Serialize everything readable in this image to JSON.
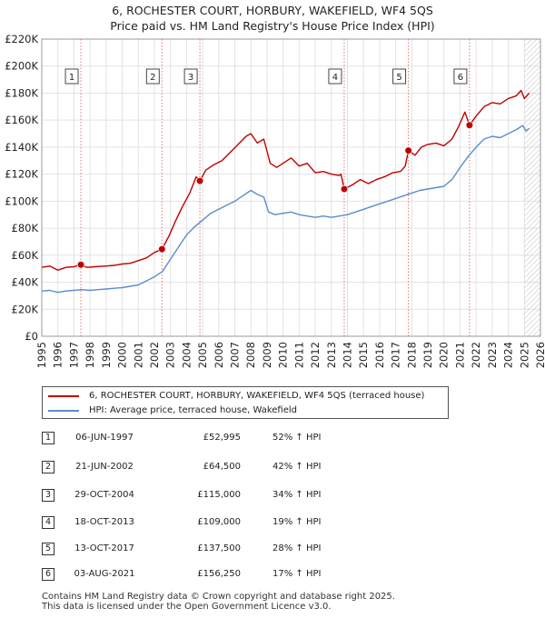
{
  "title": {
    "line1": "6, ROCHESTER COURT, HORBURY, WAKEFIELD, WF4 5QS",
    "line2": "Price paid vs. HM Land Registry's House Price Index (HPI)"
  },
  "colors": {
    "property": "#c00000",
    "hpi": "#5b8dc9",
    "vline": "#e06666",
    "forecast_hatch": "#c8c8c8"
  },
  "chart_data": {
    "type": "line",
    "title": "Price paid vs. HM Land Registry's House Price Index (HPI)",
    "xlabel": "",
    "ylabel": "",
    "xlim": [
      1995,
      2026
    ],
    "ylim": [
      0,
      220000
    ],
    "x_ticks": [
      "1995",
      "1996",
      "1997",
      "1998",
      "1999",
      "2000",
      "2001",
      "2002",
      "2003",
      "2004",
      "2005",
      "2006",
      "2007",
      "2008",
      "2009",
      "2010",
      "2011",
      "2012",
      "2013",
      "2014",
      "2015",
      "2016",
      "2017",
      "2018",
      "2019",
      "2020",
      "2021",
      "2022",
      "2023",
      "2024",
      "2025",
      "2026"
    ],
    "y_ticks": [
      {
        "value": 0,
        "label": "£0"
      },
      {
        "value": 20000,
        "label": "£20K"
      },
      {
        "value": 40000,
        "label": "£40K"
      },
      {
        "value": 60000,
        "label": "£60K"
      },
      {
        "value": 80000,
        "label": "£80K"
      },
      {
        "value": 100000,
        "label": "£100K"
      },
      {
        "value": 120000,
        "label": "£120K"
      },
      {
        "value": 140000,
        "label": "£140K"
      },
      {
        "value": 160000,
        "label": "£160K"
      },
      {
        "value": 180000,
        "label": "£180K"
      },
      {
        "value": 200000,
        "label": "£200K"
      },
      {
        "value": 220000,
        "label": "£220K"
      }
    ],
    "grid": true,
    "forecast_from": 2025.0,
    "series": [
      {
        "name": "6, ROCHESTER COURT, HORBURY, WAKEFIELD, WF4 5QS (terraced house)",
        "color": "#c00000",
        "points": [
          [
            1995.0,
            51000
          ],
          [
            1995.5,
            52000
          ],
          [
            1996.0,
            49000
          ],
          [
            1996.5,
            51000
          ],
          [
            1997.0,
            51500
          ],
          [
            1997.43,
            52995
          ],
          [
            1997.8,
            51000
          ],
          [
            1998.3,
            51500
          ],
          [
            1999.0,
            52000
          ],
          [
            1999.5,
            52500
          ],
          [
            2000.0,
            53500
          ],
          [
            2000.5,
            54000
          ],
          [
            2001.0,
            56000
          ],
          [
            2001.5,
            58000
          ],
          [
            2002.0,
            62000
          ],
          [
            2002.47,
            64500
          ],
          [
            2002.9,
            74000
          ],
          [
            2003.3,
            85000
          ],
          [
            2003.7,
            95000
          ],
          [
            2004.2,
            106000
          ],
          [
            2004.6,
            118000
          ],
          [
            2004.83,
            115000
          ],
          [
            2005.2,
            123000
          ],
          [
            2005.7,
            127000
          ],
          [
            2006.2,
            130000
          ],
          [
            2006.7,
            136000
          ],
          [
            2007.2,
            142000
          ],
          [
            2007.7,
            148000
          ],
          [
            2008.0,
            150000
          ],
          [
            2008.4,
            143000
          ],
          [
            2008.8,
            146000
          ],
          [
            2009.2,
            128000
          ],
          [
            2009.6,
            125000
          ],
          [
            2010.0,
            128000
          ],
          [
            2010.5,
            132000
          ],
          [
            2011.0,
            126000
          ],
          [
            2011.5,
            128000
          ],
          [
            2012.0,
            121000
          ],
          [
            2012.5,
            122000
          ],
          [
            2013.0,
            120000
          ],
          [
            2013.5,
            119000
          ],
          [
            2013.6,
            120000
          ],
          [
            2013.8,
            109000
          ],
          [
            2014.3,
            112000
          ],
          [
            2014.8,
            116000
          ],
          [
            2015.3,
            113000
          ],
          [
            2015.8,
            116000
          ],
          [
            2016.3,
            118000
          ],
          [
            2016.8,
            121000
          ],
          [
            2017.3,
            122000
          ],
          [
            2017.6,
            126000
          ],
          [
            2017.79,
            137500
          ],
          [
            2018.2,
            134000
          ],
          [
            2018.6,
            140000
          ],
          [
            2019.0,
            142000
          ],
          [
            2019.5,
            143000
          ],
          [
            2020.0,
            141000
          ],
          [
            2020.5,
            146000
          ],
          [
            2020.9,
            155000
          ],
          [
            2021.3,
            166000
          ],
          [
            2021.59,
            156250
          ],
          [
            2022.0,
            163000
          ],
          [
            2022.5,
            170000
          ],
          [
            2023.0,
            173000
          ],
          [
            2023.5,
            172000
          ],
          [
            2024.0,
            176000
          ],
          [
            2024.5,
            178000
          ],
          [
            2024.8,
            182000
          ],
          [
            2025.0,
            176000
          ],
          [
            2025.3,
            180000
          ]
        ]
      },
      {
        "name": "HPI: Average price, terraced house, Wakefield",
        "color": "#5b8dc9",
        "points": [
          [
            1995.0,
            33500
          ],
          [
            1995.5,
            34000
          ],
          [
            1996.0,
            32500
          ],
          [
            1996.5,
            33500
          ],
          [
            1997.0,
            34000
          ],
          [
            1997.5,
            34500
          ],
          [
            1998.0,
            34000
          ],
          [
            1998.5,
            34500
          ],
          [
            1999.0,
            35000
          ],
          [
            1999.5,
            35500
          ],
          [
            2000.0,
            36000
          ],
          [
            2000.5,
            37000
          ],
          [
            2001.0,
            38000
          ],
          [
            2001.5,
            41000
          ],
          [
            2002.0,
            44000
          ],
          [
            2002.5,
            48000
          ],
          [
            2003.0,
            57000
          ],
          [
            2003.5,
            66000
          ],
          [
            2004.0,
            75000
          ],
          [
            2004.5,
            81000
          ],
          [
            2005.0,
            86000
          ],
          [
            2005.5,
            91000
          ],
          [
            2006.0,
            94000
          ],
          [
            2006.5,
            97000
          ],
          [
            2007.0,
            100000
          ],
          [
            2007.5,
            104000
          ],
          [
            2008.0,
            108000
          ],
          [
            2008.4,
            105000
          ],
          [
            2008.8,
            103000
          ],
          [
            2009.1,
            92000
          ],
          [
            2009.5,
            90000
          ],
          [
            2010.0,
            91000
          ],
          [
            2010.5,
            92000
          ],
          [
            2011.0,
            90000
          ],
          [
            2011.5,
            89000
          ],
          [
            2012.0,
            88000
          ],
          [
            2012.5,
            89000
          ],
          [
            2013.0,
            88000
          ],
          [
            2013.5,
            89000
          ],
          [
            2014.0,
            90000
          ],
          [
            2014.5,
            92000
          ],
          [
            2015.0,
            94000
          ],
          [
            2015.5,
            96000
          ],
          [
            2016.0,
            98000
          ],
          [
            2016.5,
            100000
          ],
          [
            2017.0,
            102000
          ],
          [
            2017.5,
            104000
          ],
          [
            2018.0,
            106000
          ],
          [
            2018.5,
            108000
          ],
          [
            2019.0,
            109000
          ],
          [
            2019.5,
            110000
          ],
          [
            2020.0,
            111000
          ],
          [
            2020.5,
            116000
          ],
          [
            2021.0,
            125000
          ],
          [
            2021.5,
            133000
          ],
          [
            2022.0,
            140000
          ],
          [
            2022.5,
            146000
          ],
          [
            2023.0,
            148000
          ],
          [
            2023.5,
            147000
          ],
          [
            2024.0,
            150000
          ],
          [
            2024.5,
            153000
          ],
          [
            2024.9,
            156000
          ],
          [
            2025.1,
            152000
          ],
          [
            2025.3,
            154000
          ]
        ]
      }
    ],
    "markers": [
      {
        "id": "1",
        "x": 1997.43,
        "value": 52995
      },
      {
        "id": "2",
        "x": 2002.47,
        "value": 64500
      },
      {
        "id": "3",
        "x": 2004.83,
        "value": 115000
      },
      {
        "id": "4",
        "x": 2013.8,
        "value": 109000
      },
      {
        "id": "5",
        "x": 2017.79,
        "value": 137500
      },
      {
        "id": "6",
        "x": 2021.59,
        "value": 156250
      }
    ],
    "legend_placement": "bottom"
  },
  "legend": {
    "property": "6, ROCHESTER COURT, HORBURY, WAKEFIELD, WF4 5QS (terraced house)",
    "hpi": "HPI: Average price, terraced house, Wakefield"
  },
  "table": [
    {
      "num": "1",
      "date": "06-JUN-1997",
      "price": "£52,995",
      "hpi": "52% ↑ HPI"
    },
    {
      "num": "2",
      "date": "21-JUN-2002",
      "price": "£64,500",
      "hpi": "42% ↑ HPI"
    },
    {
      "num": "3",
      "date": "29-OCT-2004",
      "price": "£115,000",
      "hpi": "34% ↑ HPI"
    },
    {
      "num": "4",
      "date": "18-OCT-2013",
      "price": "£109,000",
      "hpi": "19% ↑ HPI"
    },
    {
      "num": "5",
      "date": "13-OCT-2017",
      "price": "£137,500",
      "hpi": "28% ↑ HPI"
    },
    {
      "num": "6",
      "date": "03-AUG-2021",
      "price": "£156,250",
      "hpi": "17% ↑ HPI"
    }
  ],
  "footer": {
    "line1": "Contains HM Land Registry data © Crown copyright and database right 2025.",
    "line2": "This data is licensed under the Open Government Licence v3.0."
  }
}
